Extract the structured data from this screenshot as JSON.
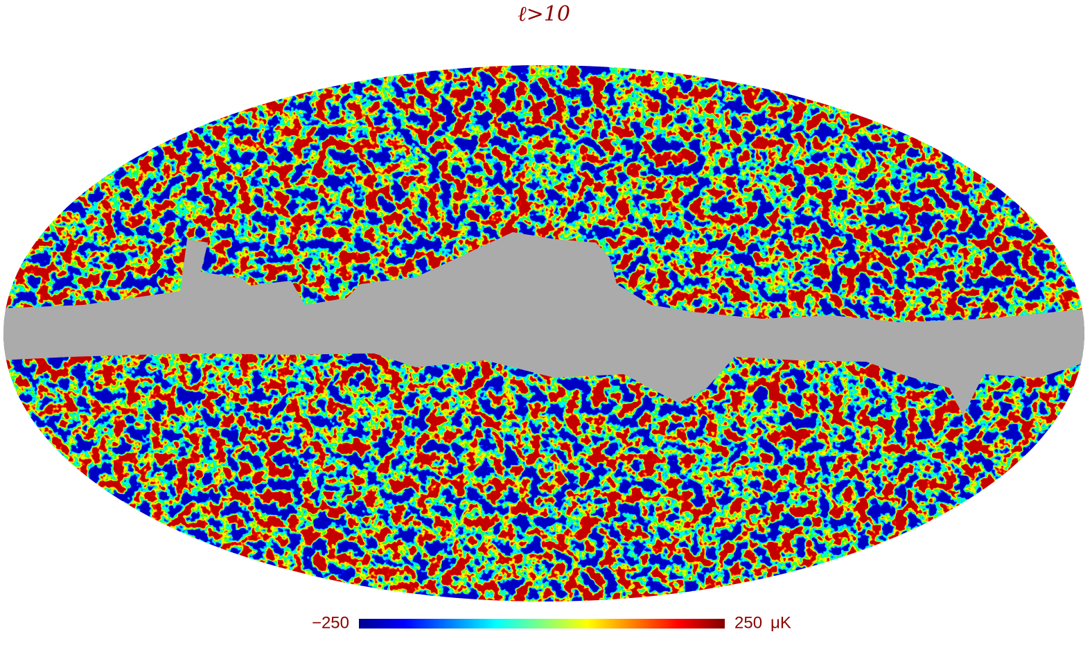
{
  "title": "ℓ>10",
  "colorbar": {
    "lim": [
      -250,
      250
    ],
    "ticks": [
      {
        "value": -250,
        "label": "−250"
      },
      250
    ],
    "unit": "μK"
  }
}
